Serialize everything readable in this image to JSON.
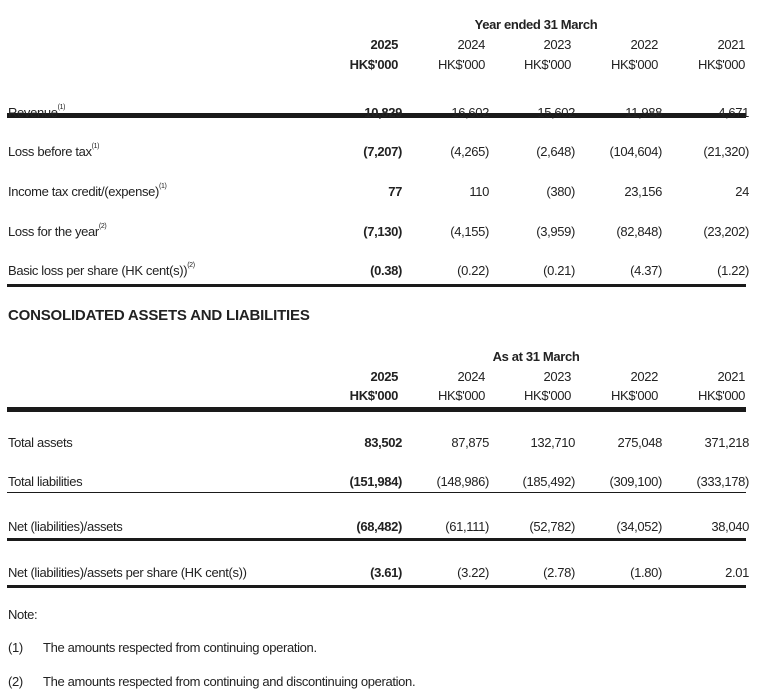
{
  "income_table": {
    "group_header": "Year ended 31 March",
    "years": [
      "2025",
      "2024",
      "2023",
      "2022",
      "2021"
    ],
    "units": [
      "HK$'000",
      "HK$'000",
      "HK$'000",
      "HK$'000",
      "HK$'000"
    ],
    "rows": [
      {
        "label": "Revenue",
        "note": "(1)",
        "values": [
          "10,829",
          "16,602",
          "15,602",
          "11,988",
          "4,671"
        ]
      },
      {
        "label": "Loss before tax",
        "note": "(1)",
        "values": [
          "(7,207)",
          "(4,265)",
          "(2,648)",
          "(104,604)",
          "(21,320)"
        ]
      },
      {
        "label": "Income tax credit/(expense)",
        "note": "(1)",
        "values": [
          "77",
          "110",
          "(380)",
          "23,156",
          "24"
        ]
      },
      {
        "label": "Loss for the year",
        "note": "(2)",
        "values": [
          "(7,130)",
          "(4,155)",
          "(3,959)",
          "(82,848)",
          "(23,202)"
        ]
      },
      {
        "label": "Basic loss per share (HK cent(s))",
        "note": "(2)",
        "values": [
          "(0.38)",
          "(0.22)",
          "(0.21)",
          "(4.37)",
          "(1.22)"
        ]
      }
    ]
  },
  "section_title": "CONSOLIDATED ASSETS AND LIABILITIES",
  "assets_table": {
    "group_header": "As at 31 March",
    "years": [
      "2025",
      "2024",
      "2023",
      "2022",
      "2021"
    ],
    "units": [
      "HK$'000",
      "HK$'000",
      "HK$'000",
      "HK$'000",
      "HK$'000"
    ],
    "rows": [
      {
        "label": "Total assets",
        "values": [
          "83,502",
          "87,875",
          "132,710",
          "275,048",
          "371,218"
        ]
      },
      {
        "label": "Total liabilities",
        "values": [
          "(151,984)",
          "(148,986)",
          "(185,492)",
          "(309,100)",
          "(333,178)"
        ]
      },
      {
        "label": "Net (liabilities)/assets",
        "values": [
          "(68,482)",
          "(61,111)",
          "(52,782)",
          "(34,052)",
          "38,040"
        ]
      },
      {
        "label": "Net (liabilities)/assets per share (HK cent(s))",
        "values": [
          "(3.61)",
          "(3.22)",
          "(2.78)",
          "(1.80)",
          "2.01"
        ]
      }
    ]
  },
  "notes": {
    "heading": "Note:",
    "items": [
      {
        "marker": "(1)",
        "text": "The amounts respected from continuing operation."
      },
      {
        "marker": "(2)",
        "text": "The amounts respected from continuing and discontinuing operation."
      }
    ]
  }
}
